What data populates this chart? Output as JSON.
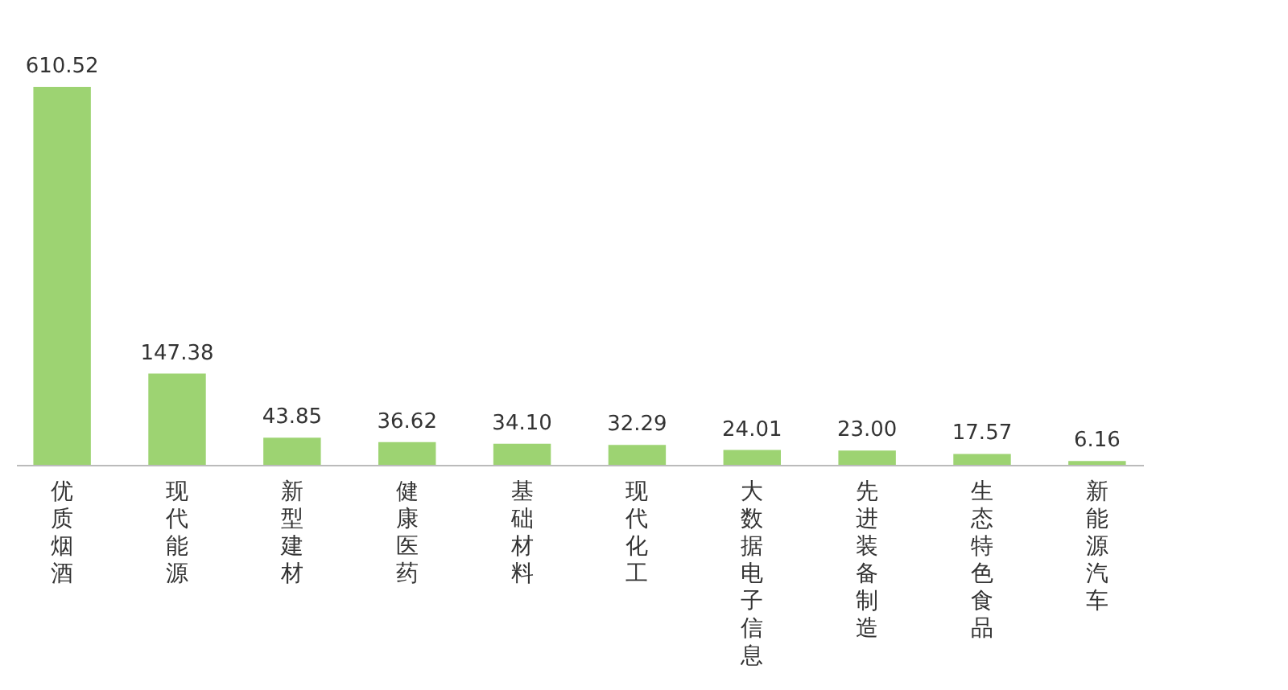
{
  "chart_data": {
    "type": "bar",
    "categories": [
      "优质烟酒",
      "现代能源",
      "新型建材",
      "健康医药",
      "基础材料",
      "现代化工",
      "大数据电子信息",
      "先进装备制造",
      "生态特色食品",
      "新能源汽车"
    ],
    "series": [
      {
        "color": "#9dd372",
        "values": [
          610.52,
          147.38,
          43.85,
          36.62,
          34.1,
          32.29,
          24.01,
          23.0,
          17.57,
          6.16
        ],
        "value_labels": [
          "610.52",
          "147.38",
          "43.85",
          "36.62",
          "34.10",
          "32.29",
          "24.01",
          "23.00",
          "17.57",
          "6.16"
        ]
      }
    ]
  }
}
